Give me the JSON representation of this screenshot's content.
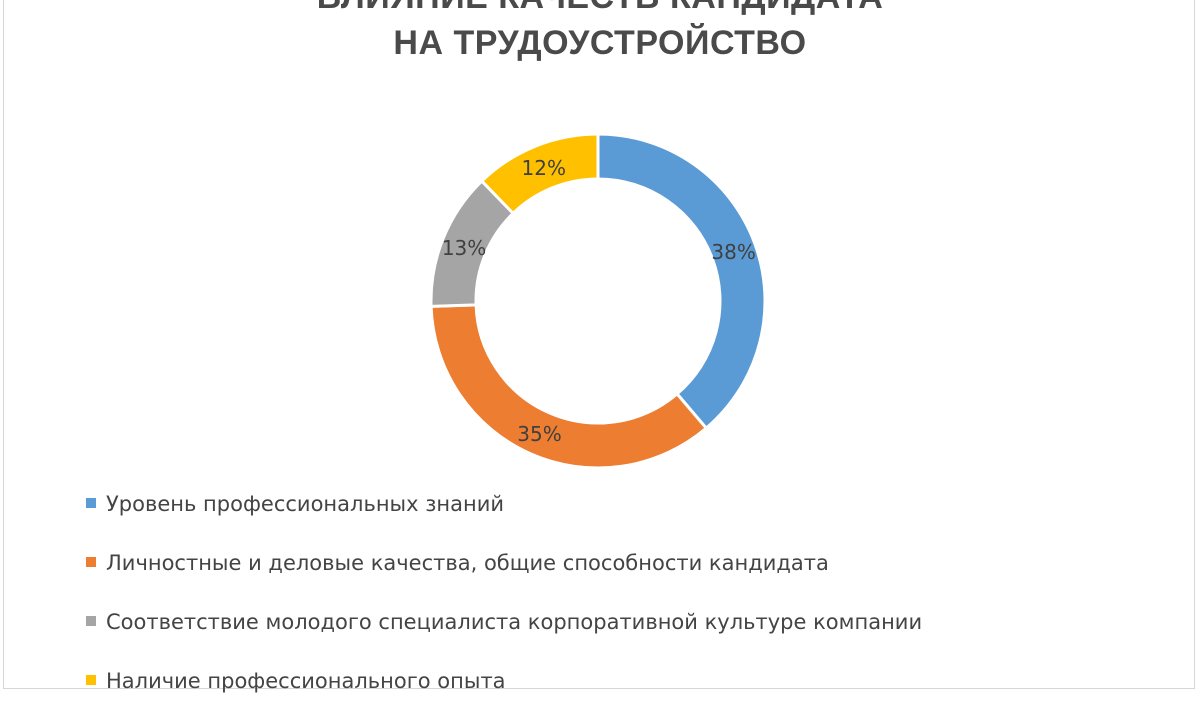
{
  "chart_data": {
    "type": "pie",
    "variant": "donut",
    "title": [
      "ВЛИЯНИЕ КАЧЕСТВ КАНДИДАТА",
      "НА ТРУДОУСТРОЙСТВО"
    ],
    "series": [
      {
        "name": "Уровень профессиональных знаний",
        "value": 38,
        "label": "38%",
        "color": "#5b9bd5"
      },
      {
        "name": "Личностные и деловые качества, общие способности кандидата",
        "value": 35,
        "label": "35%",
        "color": "#ed7d31"
      },
      {
        "name": "Соответствие молодого специалиста корпоративной культуре компании",
        "value": 13,
        "label": "13%",
        "color": "#a5a5a5"
      },
      {
        "name": "Наличие профессионального опыта",
        "value": 12,
        "label": "12%",
        "color": "#ffc000"
      }
    ],
    "legend_position": "bottom-left"
  }
}
